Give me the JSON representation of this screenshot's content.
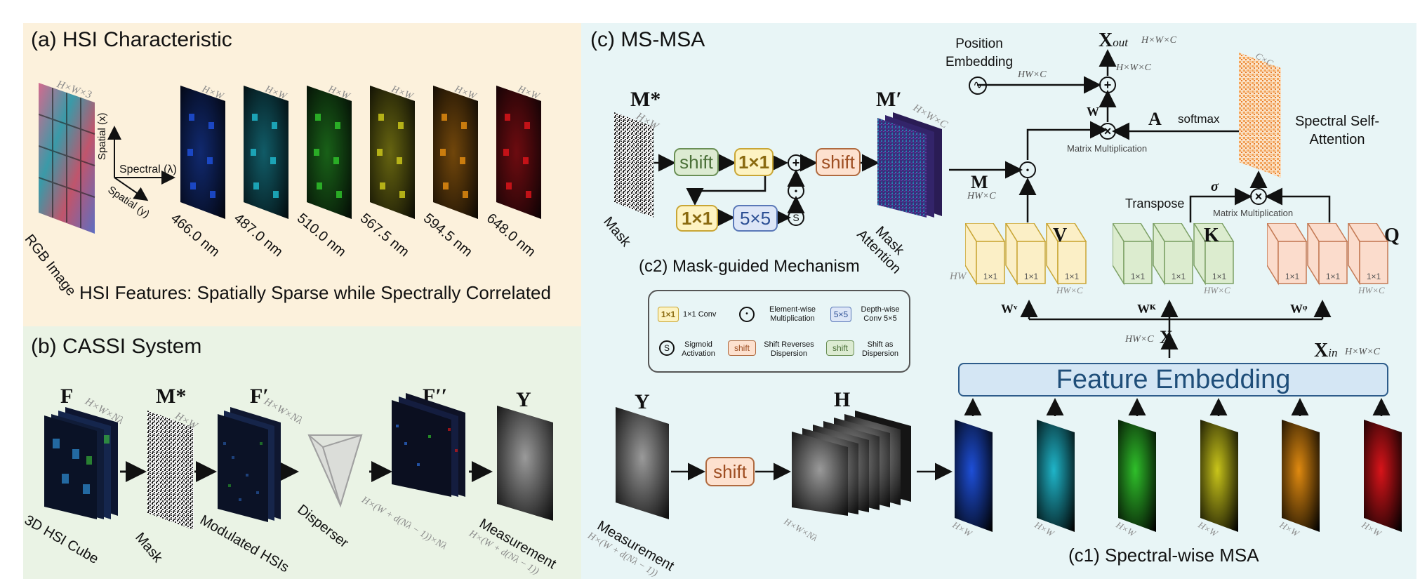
{
  "panel_a": {
    "title": "(a) HSI Characteristic",
    "rgb_label": "RGB Image",
    "rgb_dim": "H×W×3",
    "axis_x": "Spatial (x)",
    "axis_y": "Spatial (y)",
    "axis_l": "Spectral (λ)",
    "bands": [
      {
        "label": "466.0 nm",
        "dim": "H×W",
        "color": "#1e4fd8"
      },
      {
        "label": "487.0 nm",
        "dim": "H×W",
        "color": "#1fb5c9"
      },
      {
        "label": "510.0 nm",
        "dim": "H×W",
        "color": "#2fbf2a"
      },
      {
        "label": "567.5 nm",
        "dim": "H×W",
        "color": "#c9c51a"
      },
      {
        "label": "594.5 nm",
        "dim": "H×W",
        "color": "#e08a10"
      },
      {
        "label": "648.0 nm",
        "dim": "H×W",
        "color": "#d8141a"
      }
    ],
    "caption": "HSI Features: Spatially Sparse while Spectrally Correlated"
  },
  "panel_b": {
    "title": "(b) CASSI System",
    "F": "F",
    "F_dim": "H×W×Nλ",
    "F_label": "3D HSI Cube",
    "M": "M*",
    "M_dim": "H×W",
    "M_label": "Mask",
    "Fp": "F′",
    "Fp_dim": "H×W×Nλ",
    "Fp_label": "Modulated HSIs",
    "D_label": "Disperser",
    "Fpp": "F′′",
    "Fpp_dim": "H×(W + d(Nλ − 1))×Nλ",
    "Y": "Y",
    "Y_label": "Measurement",
    "Y_dim": "H×(W + d(Nλ − 1))"
  },
  "panel_c": {
    "title": "(c) MS-MSA",
    "c2_title": "(c2) Mask-guided Mechanism",
    "c1_title": "(c1) Spectral-wise MSA",
    "mstar": "M*",
    "mstar_dim": "H×W",
    "mask_label": "Mask",
    "mprime": "M′",
    "mprime_dim": "H×W×C",
    "mask_att_label": "Mask Attention",
    "shift": "shift",
    "conv11": "1×1",
    "conv55": "5×5",
    "sigmoid": "S",
    "M": "M",
    "M_dim": "HW×C",
    "pos_emb": "Position Embedding",
    "pos_dim": "HW×C",
    "xout": "Xout",
    "xout_dim": "H×W×C",
    "xout_in_dim": "H×W×C",
    "W": "W",
    "A": "A",
    "softmax": "softmax",
    "matmul1": "Matrix Multiplication",
    "matmul2": "Matrix Multiplication",
    "ssa": "Spectral Self-Attention",
    "ssa_dim": "C×C",
    "transpose": "Transpose",
    "sigma": "σ",
    "V": "V",
    "K": "K",
    "Q": "Q",
    "HW": "HW",
    "HWC": "H W×C",
    "WV": "Wᵛ",
    "WK": "Wᴷ",
    "WQ": "Wᵠ",
    "X": "X",
    "X_dim": "HW×C",
    "xin": "Xin",
    "xin_dim": "H×W×C",
    "feat": "Feature Embedding",
    "Y": "Y",
    "Y_label": "Measurement",
    "Y_dim": "H×(W + d(Nλ − 1))",
    "H": "H",
    "H_dim": "H×W×Nλ",
    "slab_dim": "H×W"
  },
  "legend": {
    "conv11": "1×1",
    "conv11_text": "1×1 Conv",
    "ew": "Element-wise Multiplication",
    "conv55": "5×5",
    "dw_text": "Depth-wise Conv 5×5",
    "sig": "S",
    "sig_text": "Sigmoid Activation",
    "shift": "shift",
    "sr_text": "Shift Reverses Dispersion",
    "sd_text": "Shift as Dispersion"
  }
}
